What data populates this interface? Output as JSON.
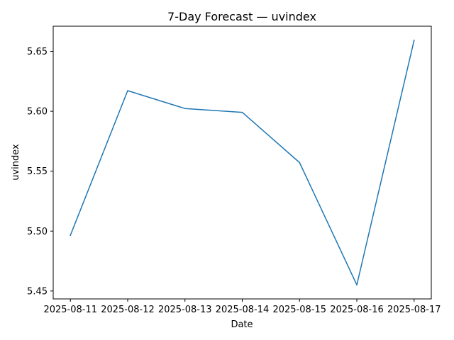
{
  "chart_data": {
    "type": "line",
    "title": "7-Day Forecast — uvindex",
    "xlabel": "Date",
    "ylabel": "uvindex",
    "x": [
      "2025-08-11",
      "2025-08-12",
      "2025-08-13",
      "2025-08-14",
      "2025-08-15",
      "2025-08-16",
      "2025-08-17"
    ],
    "series": [
      {
        "values": [
          5.4965,
          5.6172,
          5.6023,
          5.5991,
          5.5572,
          5.4551,
          5.6593
        ],
        "color": "#1f77b4"
      }
    ],
    "ylim": [
      5.4434,
      5.671
    ],
    "yticks": [
      5.45,
      5.5,
      5.55,
      5.6,
      5.65
    ],
    "ytick_labels": [
      "5.45",
      "5.50",
      "5.55",
      "5.60",
      "5.65"
    ],
    "grid": false,
    "legend": "none"
  }
}
